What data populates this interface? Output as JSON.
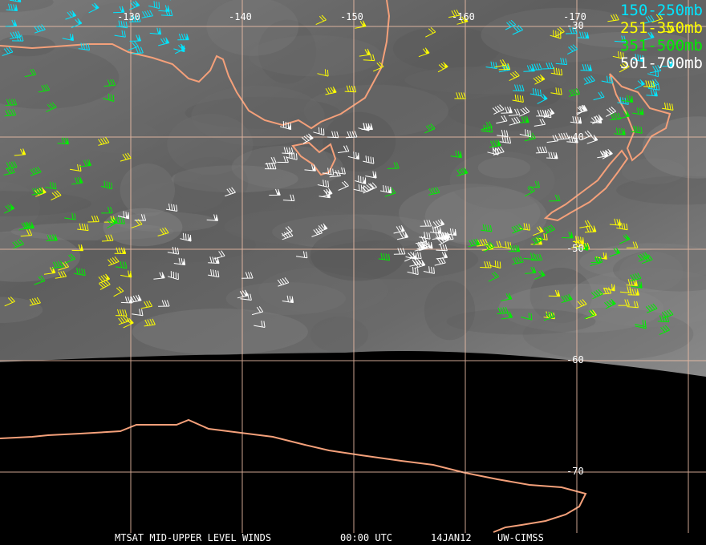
{
  "legend": [
    {
      "label": "150-250mb",
      "color": "#00e5ff"
    },
    {
      "label": "251-350mb",
      "color": "#ffff00"
    },
    {
      "label": "351-500mb",
      "color": "#00ee00"
    },
    {
      "label": "501-700mb",
      "color": "#ffffff"
    }
  ],
  "longitude_labels": [
    "-130",
    "-140",
    "-150",
    "-160",
    "-170"
  ],
  "latitude_labels": [
    "-30",
    "-40",
    "-50",
    "-60",
    "-70"
  ],
  "footer": {
    "title": "MTSAT MID-UPPER LEVEL WINDS",
    "time": "00:00 UTC",
    "date": "14JAN12",
    "credit": "UW-CIMSS"
  },
  "colors": {
    "coastline": "#f4a07a",
    "grid": "#f0c0a8",
    "imagery": "#6e6e6e"
  }
}
